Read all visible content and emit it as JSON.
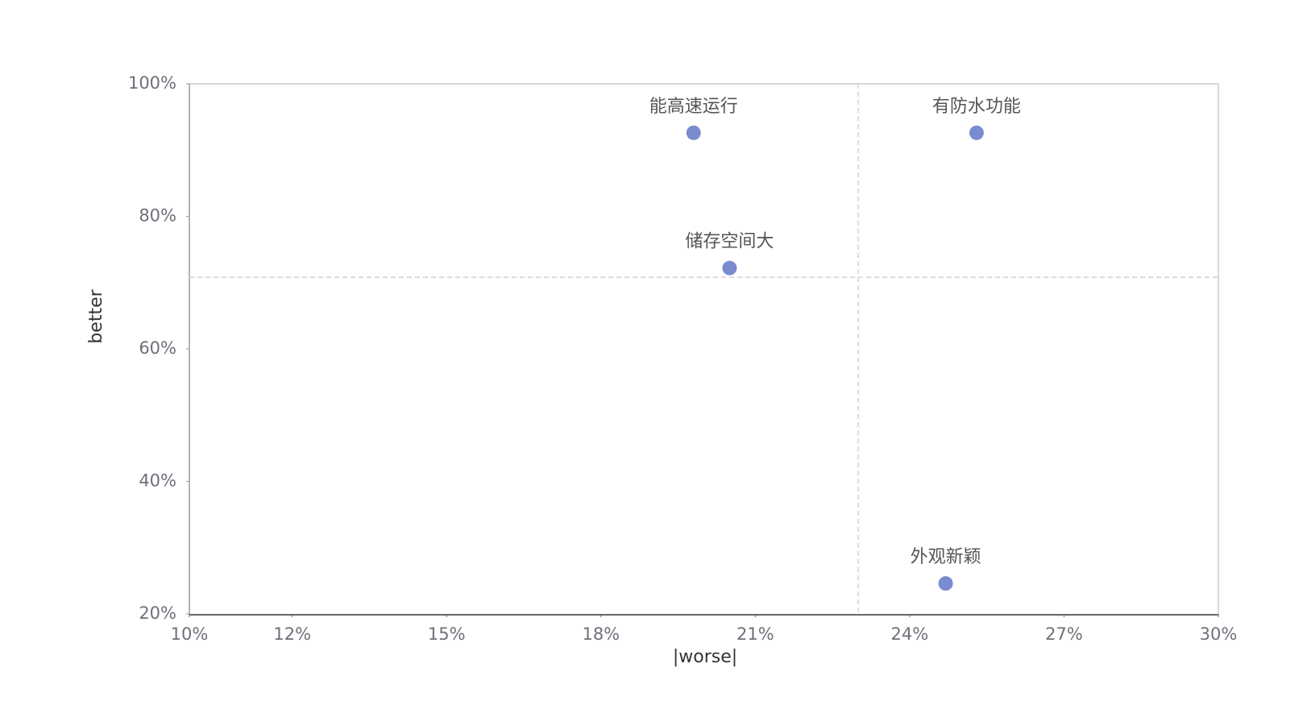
{
  "chart_data": {
    "type": "scatter",
    "xlabel": "|worse|",
    "ylabel": "better",
    "x": [
      19.8,
      25.3,
      20.5,
      24.7
    ],
    "values": [
      92.6,
      92.6,
      72.2,
      24.6
    ],
    "point_labels": [
      "能高速运行",
      "有防水功能",
      "储存空间大",
      "外观新颖"
    ],
    "color": "#7b8bcf",
    "xlim": [
      10,
      30
    ],
    "xticks": [
      {
        "value": 10,
        "label": "10%"
      },
      {
        "value": 12,
        "label": "12%"
      },
      {
        "value": 15,
        "label": "15%"
      },
      {
        "value": 18,
        "label": "18%"
      },
      {
        "value": 21,
        "label": "21%"
      },
      {
        "value": 24,
        "label": "24%"
      },
      {
        "value": 27,
        "label": "27%"
      },
      {
        "value": 30,
        "label": "30%"
      }
    ],
    "ylim": [
      20,
      100
    ],
    "yticks": [
      {
        "value": 20,
        "label": "20%"
      },
      {
        "value": 40,
        "label": "40%"
      },
      {
        "value": 60,
        "label": "60%"
      },
      {
        "value": 80,
        "label": "80%"
      },
      {
        "value": 100,
        "label": "100%"
      }
    ],
    "reference_lines": {
      "x": 23.0,
      "y": 70.8
    }
  }
}
